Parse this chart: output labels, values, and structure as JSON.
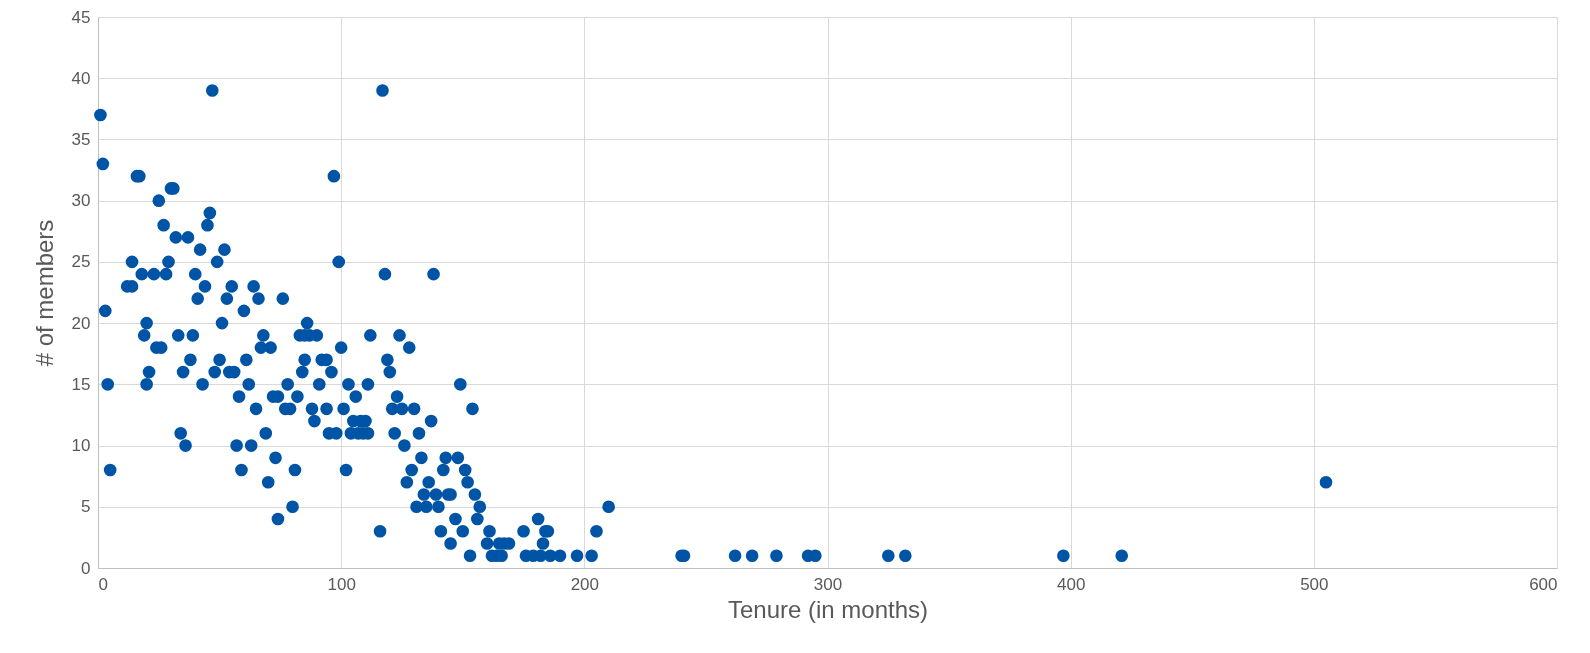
{
  "chart_data": {
    "type": "scatter",
    "xlabel": "Tenure (in months)",
    "ylabel": "# of members",
    "color": "#0054a6",
    "marker": "circle",
    "grid": true,
    "xlim": [
      0,
      600
    ],
    "xticks": [
      0,
      100,
      200,
      300,
      400,
      500,
      600
    ],
    "ylim": [
      0,
      45
    ],
    "yticks": [
      0,
      5,
      10,
      15,
      20,
      25,
      30,
      35,
      40,
      45
    ],
    "x": [
      1,
      2,
      3,
      4,
      5,
      16,
      17,
      12,
      14,
      14,
      18,
      19,
      20,
      20,
      21,
      23,
      24,
      26,
      25,
      27,
      28,
      29,
      30,
      31,
      32,
      33,
      34,
      35,
      36,
      37,
      38,
      39,
      40,
      41,
      42,
      43,
      44,
      45,
      46,
      47,
      48,
      49,
      50,
      51,
      52,
      53,
      54,
      56,
      55,
      57,
      58,
      59,
      60,
      61,
      62,
      63,
      64,
      65,
      66,
      67,
      68,
      69,
      70,
      71,
      72,
      74,
      73,
      74,
      76,
      77,
      79,
      78,
      80,
      81,
      82,
      83,
      85,
      84,
      85,
      86,
      87,
      88,
      89,
      90,
      91,
      92,
      94,
      94,
      95,
      96,
      97,
      98,
      99,
      100,
      101,
      102,
      103,
      104,
      105,
      106,
      107,
      109,
      108,
      110,
      111,
      111,
      112,
      116,
      117,
      118,
      119,
      120,
      121,
      122,
      123,
      124,
      125,
      126,
      127,
      128,
      129,
      130,
      131,
      132,
      133,
      134,
      135,
      136,
      137,
      138,
      139,
      140,
      141,
      142,
      143,
      144,
      145,
      145,
      147,
      148,
      149,
      150,
      151,
      152,
      153,
      154,
      155,
      156,
      157,
      160,
      161,
      162,
      164,
      165,
      166,
      167,
      169,
      175,
      176,
      179,
      181,
      183,
      184,
      185,
      182,
      186,
      190,
      197,
      203,
      205,
      210,
      240,
      241,
      262,
      269,
      279,
      292,
      295,
      325,
      332,
      397,
      421,
      505
    ],
    "values": [
      37,
      33,
      21,
      15,
      8,
      32,
      32,
      23,
      23,
      25,
      24,
      19,
      20,
      15,
      16,
      24,
      18,
      18,
      30,
      28,
      24,
      25,
      31,
      31,
      27,
      19,
      11,
      16,
      10,
      27,
      17,
      19,
      24,
      22,
      26,
      15,
      23,
      28,
      29,
      39,
      16,
      25,
      17,
      20,
      26,
      22,
      16,
      16,
      23,
      10,
      14,
      8,
      21,
      17,
      15,
      10,
      23,
      13,
      22,
      18,
      19,
      11,
      7,
      18,
      14,
      14,
      9,
      4,
      22,
      13,
      13,
      15,
      5,
      8,
      14,
      19,
      19,
      16,
      17,
      20,
      19,
      13,
      12,
      19,
      15,
      17,
      17,
      13,
      11,
      16,
      32,
      11,
      25,
      18,
      13,
      8,
      15,
      11,
      12,
      14,
      11,
      11,
      12,
      12,
      11,
      15,
      19,
      3,
      39,
      24,
      17,
      16,
      13,
      11,
      14,
      19,
      13,
      10,
      7,
      18,
      8,
      13,
      5,
      11,
      9,
      6,
      5,
      7,
      12,
      24,
      6,
      5,
      3,
      8,
      9,
      6,
      6,
      2,
      4,
      9,
      15,
      3,
      8,
      7,
      1,
      13,
      6,
      4,
      5,
      2,
      3,
      1,
      1,
      2,
      1,
      2,
      2,
      3,
      1,
      1,
      4,
      2,
      3,
      3,
      1,
      1,
      1,
      1,
      1,
      3,
      5,
      1,
      1,
      1,
      1,
      1,
      1,
      1,
      1,
      1,
      1,
      1,
      7
    ]
  }
}
